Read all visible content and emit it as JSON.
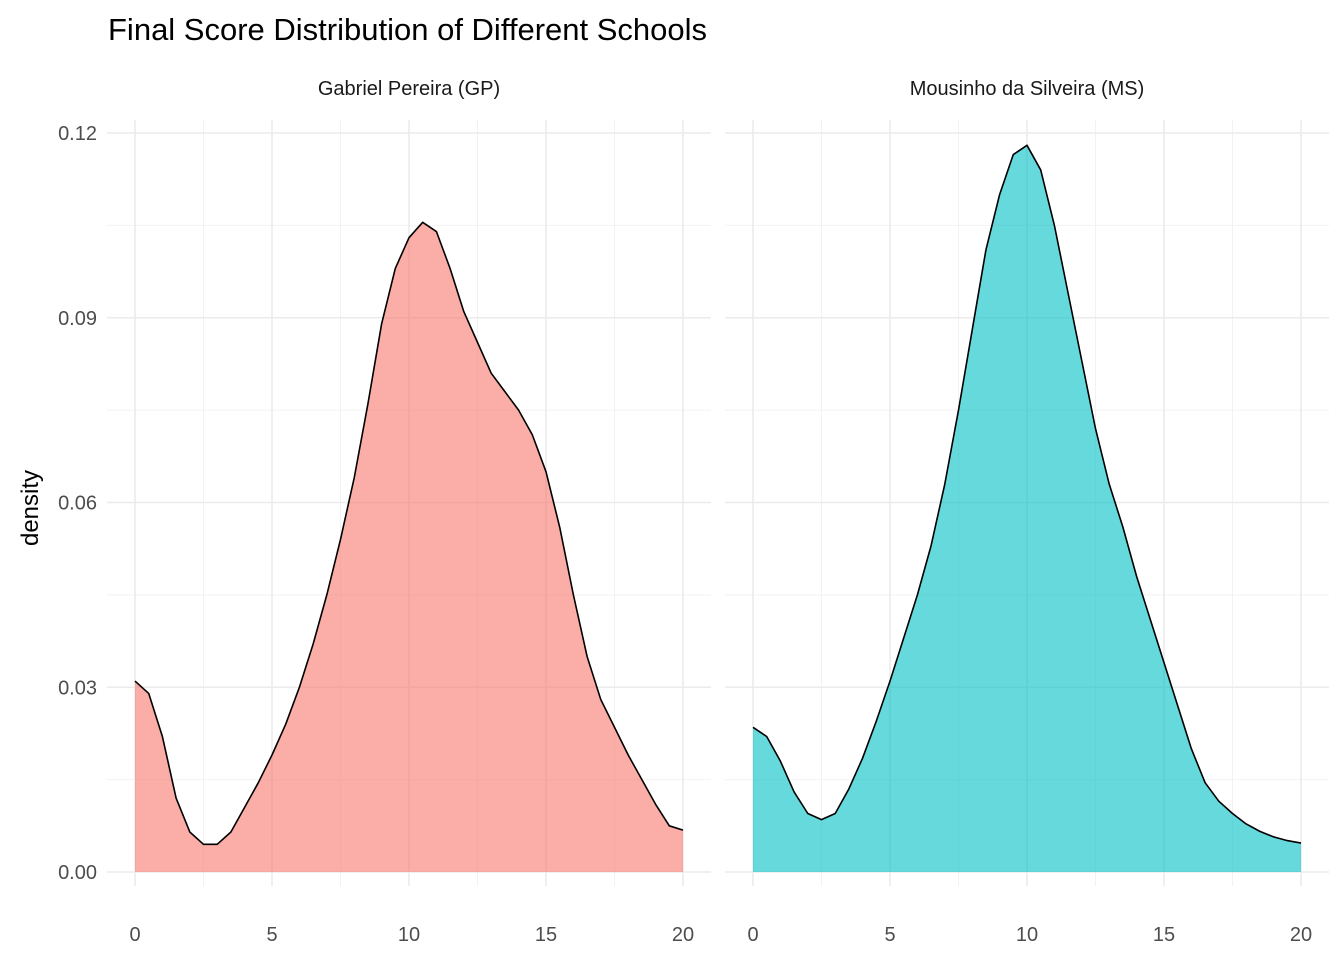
{
  "chart_data": {
    "type": "area",
    "title": "Final Score Distribution of Different Schools",
    "xlabel": "",
    "ylabel": "density",
    "xlim": [
      0,
      20
    ],
    "ylim": [
      0,
      0.12
    ],
    "x_ticks": [
      0,
      5,
      10,
      15,
      20
    ],
    "y_ticks": [
      0.0,
      0.03,
      0.06,
      0.09,
      0.12
    ],
    "y_tick_labels": [
      "0.00",
      "0.03",
      "0.06",
      "0.09",
      "0.12"
    ],
    "grid": true,
    "legend": "none",
    "panels": [
      {
        "name": "Gabriel Pereira (GP)",
        "color": "#F8766D",
        "x": [
          0,
          0.5,
          1,
          1.5,
          2,
          2.5,
          3,
          3.5,
          4,
          4.5,
          5,
          5.5,
          6,
          6.5,
          7,
          7.5,
          8,
          8.5,
          9,
          9.5,
          10,
          10.5,
          11,
          11.5,
          12,
          12.5,
          13,
          13.5,
          14,
          14.5,
          15,
          15.5,
          16,
          16.5,
          17,
          17.5,
          18,
          18.5,
          19,
          19.5,
          20
        ],
        "density": [
          0.031,
          0.029,
          0.022,
          0.012,
          0.0065,
          0.0045,
          0.0045,
          0.0065,
          0.0105,
          0.0145,
          0.019,
          0.024,
          0.03,
          0.037,
          0.045,
          0.054,
          0.064,
          0.076,
          0.089,
          0.098,
          0.103,
          0.1055,
          0.104,
          0.098,
          0.091,
          0.086,
          0.081,
          0.078,
          0.075,
          0.071,
          0.065,
          0.056,
          0.045,
          0.035,
          0.028,
          0.0235,
          0.019,
          0.015,
          0.011,
          0.0075,
          0.0068
        ]
      },
      {
        "name": "Mousinho da Silveira (MS)",
        "color": "#00BFC4",
        "x": [
          0,
          0.5,
          1,
          1.5,
          2,
          2.5,
          3,
          3.5,
          4,
          4.5,
          5,
          5.5,
          6,
          6.5,
          7,
          7.5,
          8,
          8.5,
          9,
          9.5,
          10,
          10.5,
          11,
          11.5,
          12,
          12.5,
          13,
          13.5,
          14,
          14.5,
          15,
          15.5,
          16,
          16.5,
          17,
          17.5,
          18,
          18.5,
          19,
          19.5,
          20
        ],
        "density": [
          0.0235,
          0.022,
          0.018,
          0.013,
          0.0095,
          0.0085,
          0.0095,
          0.0135,
          0.0185,
          0.0245,
          0.031,
          0.038,
          0.045,
          0.053,
          0.063,
          0.075,
          0.088,
          0.101,
          0.11,
          0.1165,
          0.118,
          0.114,
          0.105,
          0.094,
          0.083,
          0.072,
          0.063,
          0.056,
          0.048,
          0.041,
          0.034,
          0.027,
          0.02,
          0.0145,
          0.0115,
          0.0095,
          0.0078,
          0.0066,
          0.0057,
          0.0051,
          0.0047
        ]
      }
    ]
  }
}
